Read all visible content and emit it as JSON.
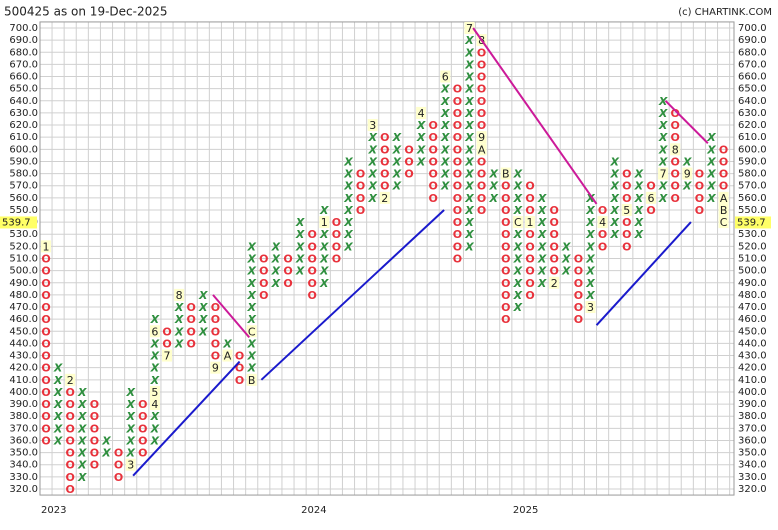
{
  "chart_data": {
    "type": "point-and-figure",
    "title": "500425 as on 19-Dec-2025",
    "credit": "(c) CHARTINK.COM",
    "box_size": 10,
    "x_color": "#2f8f3f",
    "o_color": "#e8323c",
    "current_price": 539.7,
    "ylim": [
      320,
      700
    ],
    "yticks": [
      {
        "value": 320,
        "label": "320.0"
      },
      {
        "value": 330,
        "label": "330.0"
      },
      {
        "value": 340,
        "label": "340.0"
      },
      {
        "value": 350,
        "label": "350.0"
      },
      {
        "value": 360,
        "label": "360.0"
      },
      {
        "value": 370,
        "label": "370.0"
      },
      {
        "value": 380,
        "label": "380.0"
      },
      {
        "value": 390,
        "label": "390.0"
      },
      {
        "value": 400,
        "label": "400.0"
      },
      {
        "value": 410,
        "label": "410.0"
      },
      {
        "value": 420,
        "label": "420.0"
      },
      {
        "value": 430,
        "label": "430.0"
      },
      {
        "value": 440,
        "label": "440.0"
      },
      {
        "value": 450,
        "label": "450.0"
      },
      {
        "value": 460,
        "label": "460.0"
      },
      {
        "value": 470,
        "label": "470.0"
      },
      {
        "value": 480,
        "label": "480.0"
      },
      {
        "value": 490,
        "label": "490.0"
      },
      {
        "value": 500,
        "label": "500.0"
      },
      {
        "value": 510,
        "label": "510.0"
      },
      {
        "value": 520,
        "label": "520.0"
      },
      {
        "value": 530,
        "label": "530.0"
      },
      {
        "value": 540,
        "label": "540.0"
      },
      {
        "value": 550,
        "label": "550.0"
      },
      {
        "value": 560,
        "label": "560.0"
      },
      {
        "value": 570,
        "label": "570.0"
      },
      {
        "value": 580,
        "label": "580.0"
      },
      {
        "value": 590,
        "label": "590.0"
      },
      {
        "value": 600,
        "label": "600.0"
      },
      {
        "value": 610,
        "label": "610.0"
      },
      {
        "value": 620,
        "label": "620.0"
      },
      {
        "value": 630,
        "label": "630.0"
      },
      {
        "value": 640,
        "label": "640.0"
      },
      {
        "value": 650,
        "label": "650.0"
      },
      {
        "value": 660,
        "label": "660.0"
      },
      {
        "value": 670,
        "label": "670.0"
      },
      {
        "value": 680,
        "label": "680.0"
      },
      {
        "value": 690,
        "label": "690.0"
      },
      {
        "value": 700,
        "label": "700.0"
      }
    ],
    "year_markers": [
      {
        "label": "2023",
        "column": 0
      },
      {
        "label": "2024",
        "column": 21.5
      },
      {
        "label": "2025",
        "column": 39
      }
    ],
    "columns": [
      {
        "type": "O",
        "from": 520,
        "to": 360,
        "labels": [
          {
            "price": 520,
            "text": "1"
          }
        ]
      },
      {
        "type": "X",
        "from": 360,
        "to": 420,
        "labels": []
      },
      {
        "type": "O",
        "from": 410,
        "to": 320,
        "labels": [
          {
            "price": 410,
            "text": "2"
          }
        ]
      },
      {
        "type": "X",
        "from": 330,
        "to": 400,
        "labels": []
      },
      {
        "type": "O",
        "from": 390,
        "to": 340,
        "labels": []
      },
      {
        "type": "X",
        "from": 350,
        "to": 360,
        "labels": []
      },
      {
        "type": "O",
        "from": 350,
        "to": 330,
        "labels": []
      },
      {
        "type": "X",
        "from": 340,
        "to": 400,
        "labels": [
          {
            "price": 340,
            "text": "3"
          }
        ]
      },
      {
        "type": "O",
        "from": 390,
        "to": 350,
        "labels": []
      },
      {
        "type": "X",
        "from": 360,
        "to": 460,
        "labels": [
          {
            "price": 390,
            "text": "4"
          },
          {
            "price": 400,
            "text": "5"
          },
          {
            "price": 450,
            "text": "6"
          }
        ]
      },
      {
        "type": "O",
        "from": 450,
        "to": 430,
        "labels": [
          {
            "price": 430,
            "text": "7"
          }
        ]
      },
      {
        "type": "X",
        "from": 440,
        "to": 480,
        "labels": [
          {
            "price": 480,
            "text": "8"
          }
        ]
      },
      {
        "type": "O",
        "from": 470,
        "to": 440,
        "labels": []
      },
      {
        "type": "X",
        "from": 450,
        "to": 480,
        "labels": []
      },
      {
        "type": "O",
        "from": 470,
        "to": 420,
        "labels": [
          {
            "price": 420,
            "text": "9"
          }
        ]
      },
      {
        "type": "X",
        "from": 430,
        "to": 440,
        "labels": [
          {
            "price": 430,
            "text": "A"
          }
        ]
      },
      {
        "type": "O",
        "from": 430,
        "to": 410,
        "labels": []
      },
      {
        "type": "X",
        "from": 410,
        "to": 520,
        "labels": [
          {
            "price": 410,
            "text": "B"
          },
          {
            "price": 450,
            "text": "C"
          }
        ]
      },
      {
        "type": "O",
        "from": 510,
        "to": 480,
        "labels": []
      },
      {
        "type": "X",
        "from": 490,
        "to": 520,
        "labels": []
      },
      {
        "type": "O",
        "from": 510,
        "to": 490,
        "labels": []
      },
      {
        "type": "X",
        "from": 500,
        "to": 540,
        "labels": []
      },
      {
        "type": "O",
        "from": 530,
        "to": 480,
        "labels": []
      },
      {
        "type": "X",
        "from": 490,
        "to": 550,
        "labels": [
          {
            "price": 540,
            "text": "1"
          }
        ]
      },
      {
        "type": "O",
        "from": 540,
        "to": 510,
        "labels": []
      },
      {
        "type": "X",
        "from": 520,
        "to": 590,
        "labels": []
      },
      {
        "type": "O",
        "from": 580,
        "to": 550,
        "labels": []
      },
      {
        "type": "X",
        "from": 560,
        "to": 620,
        "labels": [
          {
            "price": 620,
            "text": "3"
          }
        ]
      },
      {
        "type": "O",
        "from": 610,
        "to": 560,
        "labels": [
          {
            "price": 560,
            "text": "2"
          }
        ]
      },
      {
        "type": "X",
        "from": 570,
        "to": 610,
        "labels": []
      },
      {
        "type": "O",
        "from": 600,
        "to": 580,
        "labels": []
      },
      {
        "type": "X",
        "from": 590,
        "to": 630,
        "labels": [
          {
            "price": 630,
            "text": "4"
          }
        ]
      },
      {
        "type": "O",
        "from": 620,
        "to": 560,
        "labels": []
      },
      {
        "type": "X",
        "from": 570,
        "to": 660,
        "labels": [
          {
            "price": 660,
            "text": "6"
          }
        ]
      },
      {
        "type": "O",
        "from": 650,
        "to": 510,
        "labels": []
      },
      {
        "type": "X",
        "from": 520,
        "to": 700,
        "labels": [
          {
            "price": 700,
            "text": "7"
          }
        ]
      },
      {
        "type": "O",
        "from": 690,
        "to": 550,
        "labels": [
          {
            "price": 690,
            "text": "8"
          },
          {
            "price": 610,
            "text": "9"
          },
          {
            "price": 600,
            "text": "A"
          }
        ]
      },
      {
        "type": "X",
        "from": 560,
        "to": 580,
        "labels": []
      },
      {
        "type": "O",
        "from": 580,
        "to": 460,
        "labels": [
          {
            "price": 580,
            "text": "B"
          }
        ]
      },
      {
        "type": "X",
        "from": 470,
        "to": 580,
        "labels": [
          {
            "price": 540,
            "text": "C"
          }
        ]
      },
      {
        "type": "O",
        "from": 570,
        "to": 480,
        "labels": [
          {
            "price": 540,
            "text": "1"
          }
        ]
      },
      {
        "type": "X",
        "from": 490,
        "to": 560,
        "labels": []
      },
      {
        "type": "O",
        "from": 550,
        "to": 490,
        "labels": [
          {
            "price": 490,
            "text": "2"
          }
        ]
      },
      {
        "type": "X",
        "from": 500,
        "to": 520,
        "labels": []
      },
      {
        "type": "O",
        "from": 510,
        "to": 460,
        "labels": []
      },
      {
        "type": "X",
        "from": 470,
        "to": 560,
        "labels": [
          {
            "price": 470,
            "text": "3"
          }
        ]
      },
      {
        "type": "O",
        "from": 550,
        "to": 520,
        "labels": [
          {
            "price": 540,
            "text": "4"
          }
        ]
      },
      {
        "type": "X",
        "from": 530,
        "to": 590,
        "labels": []
      },
      {
        "type": "O",
        "from": 580,
        "to": 520,
        "labels": [
          {
            "price": 550,
            "text": "5"
          }
        ]
      },
      {
        "type": "X",
        "from": 530,
        "to": 580,
        "labels": []
      },
      {
        "type": "O",
        "from": 570,
        "to": 550,
        "labels": [
          {
            "price": 560,
            "text": "6"
          }
        ]
      },
      {
        "type": "X",
        "from": 560,
        "to": 640,
        "labels": [
          {
            "price": 580,
            "text": "7"
          }
        ]
      },
      {
        "type": "O",
        "from": 630,
        "to": 560,
        "labels": [
          {
            "price": 600,
            "text": "8"
          }
        ]
      },
      {
        "type": "X",
        "from": 570,
        "to": 590,
        "labels": [
          {
            "price": 580,
            "text": "9"
          }
        ]
      },
      {
        "type": "O",
        "from": 580,
        "to": 550,
        "labels": []
      },
      {
        "type": "X",
        "from": 560,
        "to": 610,
        "labels": []
      },
      {
        "type": "O",
        "from": 600,
        "to": 540,
        "labels": [
          {
            "price": 560,
            "text": "A"
          },
          {
            "price": 550,
            "text": "B"
          },
          {
            "price": 540,
            "text": "C"
          }
        ]
      }
    ],
    "trendlines": [
      {
        "color": "#1a1acc",
        "from": [
          7.2,
          331
        ],
        "to": [
          16,
          425
        ]
      },
      {
        "color": "#1a1acc",
        "from": [
          17.8,
          410
        ],
        "to": [
          32.9,
          550
        ]
      },
      {
        "color": "#1a1acc",
        "from": [
          45.5,
          455
        ],
        "to": [
          53.3,
          540
        ]
      },
      {
        "color": "#cc1a99",
        "from": [
          13.8,
          480
        ],
        "to": [
          16.8,
          445
        ]
      },
      {
        "color": "#cc1a99",
        "from": [
          35.3,
          700
        ],
        "to": [
          45.5,
          555
        ]
      },
      {
        "color": "#cc1a99",
        "from": [
          51.2,
          640
        ],
        "to": [
          54.7,
          605
        ]
      }
    ]
  }
}
